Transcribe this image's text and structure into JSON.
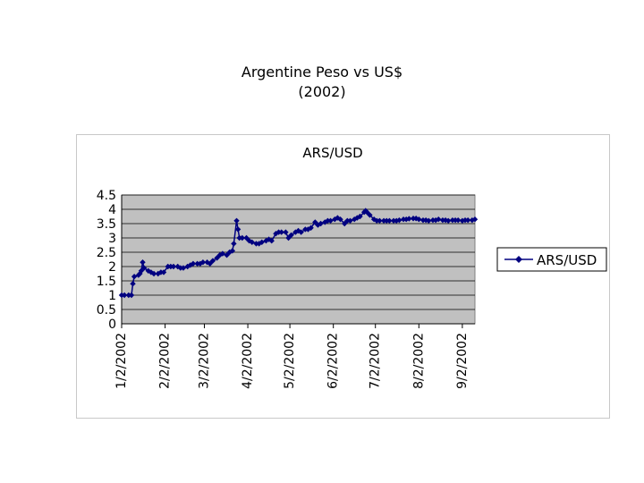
{
  "slide": {
    "title_line1": "Argentine Peso vs US$",
    "title_line2": "(2002)"
  },
  "chart_data": {
    "type": "line",
    "title": "ARS/USD",
    "xlabel": "",
    "ylabel": "",
    "ylim": [
      0,
      4.5
    ],
    "yticks": [
      "0",
      "0.5",
      "1",
      "1.5",
      "2",
      "2.5",
      "3",
      "3.5",
      "4",
      "4.5"
    ],
    "x_ticks": [
      "1/2/2002",
      "2/2/2002",
      "3/2/2002",
      "4/2/2002",
      "5/2/2002",
      "6/2/2002",
      "7/2/2002",
      "8/2/2002",
      "9/2/2002"
    ],
    "x_range": [
      "2002-01-02",
      "2002-09-11"
    ],
    "grid": true,
    "legend_position": "right",
    "colors": {
      "series": "#000080",
      "plot_area": "#c0c0c0",
      "gridline": "#000000"
    },
    "series": [
      {
        "name": "ARS/USD",
        "points": [
          [
            "2002-01-02",
            1.0
          ],
          [
            "2002-01-04",
            1.0
          ],
          [
            "2002-01-07",
            1.0
          ],
          [
            "2002-01-09",
            1.0
          ],
          [
            "2002-01-10",
            1.4
          ],
          [
            "2002-01-11",
            1.65
          ],
          [
            "2002-01-14",
            1.7
          ],
          [
            "2002-01-15",
            1.75
          ],
          [
            "2002-01-16",
            1.85
          ],
          [
            "2002-01-17",
            2.15
          ],
          [
            "2002-01-18",
            1.95
          ],
          [
            "2002-01-21",
            1.85
          ],
          [
            "2002-01-23",
            1.8
          ],
          [
            "2002-01-25",
            1.75
          ],
          [
            "2002-01-28",
            1.75
          ],
          [
            "2002-01-30",
            1.8
          ],
          [
            "2002-02-01",
            1.8
          ],
          [
            "2002-02-04",
            2.0
          ],
          [
            "2002-02-06",
            2.0
          ],
          [
            "2002-02-08",
            2.0
          ],
          [
            "2002-02-11",
            2.0
          ],
          [
            "2002-02-13",
            1.95
          ],
          [
            "2002-02-15",
            1.95
          ],
          [
            "2002-02-18",
            2.0
          ],
          [
            "2002-02-20",
            2.05
          ],
          [
            "2002-02-22",
            2.1
          ],
          [
            "2002-02-25",
            2.1
          ],
          [
            "2002-02-27",
            2.1
          ],
          [
            "2002-03-01",
            2.15
          ],
          [
            "2002-03-04",
            2.15
          ],
          [
            "2002-03-06",
            2.1
          ],
          [
            "2002-03-08",
            2.2
          ],
          [
            "2002-03-11",
            2.3
          ],
          [
            "2002-03-13",
            2.4
          ],
          [
            "2002-03-15",
            2.45
          ],
          [
            "2002-03-18",
            2.4
          ],
          [
            "2002-03-20",
            2.5
          ],
          [
            "2002-03-22",
            2.55
          ],
          [
            "2002-03-23",
            2.8
          ],
          [
            "2002-03-25",
            3.6
          ],
          [
            "2002-03-26",
            3.3
          ],
          [
            "2002-03-27",
            3.0
          ],
          [
            "2002-03-29",
            3.0
          ],
          [
            "2002-04-01",
            3.0
          ],
          [
            "2002-04-03",
            2.9
          ],
          [
            "2002-04-05",
            2.85
          ],
          [
            "2002-04-08",
            2.8
          ],
          [
            "2002-04-10",
            2.8
          ],
          [
            "2002-04-12",
            2.85
          ],
          [
            "2002-04-15",
            2.9
          ],
          [
            "2002-04-17",
            2.95
          ],
          [
            "2002-04-19",
            2.9
          ],
          [
            "2002-04-22",
            3.15
          ],
          [
            "2002-04-24",
            3.2
          ],
          [
            "2002-04-26",
            3.2
          ],
          [
            "2002-04-29",
            3.2
          ],
          [
            "2002-05-01",
            3.0
          ],
          [
            "2002-05-03",
            3.1
          ],
          [
            "2002-05-06",
            3.2
          ],
          [
            "2002-05-08",
            3.25
          ],
          [
            "2002-05-10",
            3.2
          ],
          [
            "2002-05-13",
            3.3
          ],
          [
            "2002-05-15",
            3.3
          ],
          [
            "2002-05-17",
            3.35
          ],
          [
            "2002-05-20",
            3.55
          ],
          [
            "2002-05-22",
            3.45
          ],
          [
            "2002-05-24",
            3.5
          ],
          [
            "2002-05-27",
            3.55
          ],
          [
            "2002-05-29",
            3.6
          ],
          [
            "2002-05-31",
            3.6
          ],
          [
            "2002-06-03",
            3.65
          ],
          [
            "2002-06-05",
            3.7
          ],
          [
            "2002-06-07",
            3.65
          ],
          [
            "2002-06-10",
            3.5
          ],
          [
            "2002-06-12",
            3.6
          ],
          [
            "2002-06-14",
            3.6
          ],
          [
            "2002-06-17",
            3.65
          ],
          [
            "2002-06-19",
            3.7
          ],
          [
            "2002-06-21",
            3.75
          ],
          [
            "2002-06-24",
            3.9
          ],
          [
            "2002-06-25",
            3.95
          ],
          [
            "2002-06-26",
            3.9
          ],
          [
            "2002-06-28",
            3.8
          ],
          [
            "2002-07-01",
            3.65
          ],
          [
            "2002-07-03",
            3.6
          ],
          [
            "2002-07-05",
            3.6
          ],
          [
            "2002-07-08",
            3.6
          ],
          [
            "2002-07-10",
            3.6
          ],
          [
            "2002-07-12",
            3.6
          ],
          [
            "2002-07-15",
            3.6
          ],
          [
            "2002-07-17",
            3.6
          ],
          [
            "2002-07-19",
            3.62
          ],
          [
            "2002-07-22",
            3.65
          ],
          [
            "2002-07-24",
            3.65
          ],
          [
            "2002-07-26",
            3.67
          ],
          [
            "2002-07-29",
            3.68
          ],
          [
            "2002-07-31",
            3.68
          ],
          [
            "2002-08-02",
            3.65
          ],
          [
            "2002-08-05",
            3.62
          ],
          [
            "2002-08-07",
            3.62
          ],
          [
            "2002-08-09",
            3.6
          ],
          [
            "2002-08-12",
            3.62
          ],
          [
            "2002-08-14",
            3.62
          ],
          [
            "2002-08-16",
            3.65
          ],
          [
            "2002-08-19",
            3.62
          ],
          [
            "2002-08-21",
            3.62
          ],
          [
            "2002-08-23",
            3.6
          ],
          [
            "2002-08-26",
            3.62
          ],
          [
            "2002-08-28",
            3.62
          ],
          [
            "2002-08-30",
            3.62
          ],
          [
            "2002-09-02",
            3.6
          ],
          [
            "2002-09-04",
            3.62
          ],
          [
            "2002-09-06",
            3.62
          ],
          [
            "2002-09-09",
            3.62
          ],
          [
            "2002-09-11",
            3.65
          ]
        ]
      }
    ]
  }
}
